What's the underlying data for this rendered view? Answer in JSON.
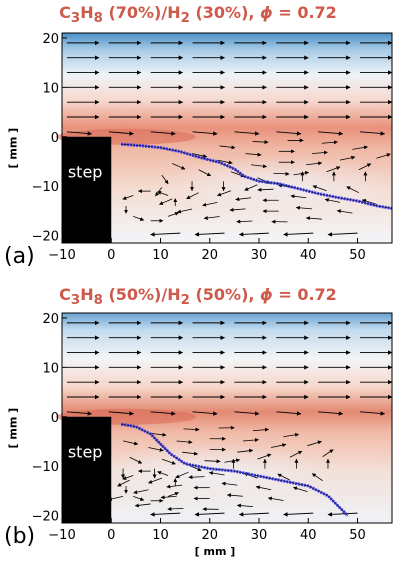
{
  "panels": [
    {
      "id": "a",
      "label": "(a)",
      "title": {
        "fuel1": "C",
        "sub1": "3",
        "fuel1b": "H",
        "sub2": "8",
        "pct1": " (70%)/H",
        "sub3": "2",
        "pct2": " (30%), ",
        "phi_symbol": "ϕ",
        "phi_value": " = 0.72"
      },
      "step_label": "step",
      "y_axis_label": "[ mm ]",
      "y_ticks": [
        "20",
        "10",
        "0",
        "−10",
        "−20"
      ],
      "x_ticks": [
        "−10",
        "0",
        "10",
        "20",
        "30",
        "40",
        "50"
      ],
      "flame_front": [
        [
          2,
          -1.5
        ],
        [
          6,
          -1.8
        ],
        [
          10,
          -2.2
        ],
        [
          14,
          -3
        ],
        [
          18,
          -4.2
        ],
        [
          22,
          -5.2
        ],
        [
          25,
          -6.5
        ],
        [
          27,
          -8
        ],
        [
          30,
          -9
        ],
        [
          34,
          -9.5
        ],
        [
          38,
          -10.5
        ],
        [
          42,
          -11.5
        ],
        [
          46,
          -12.3
        ],
        [
          50,
          -13
        ],
        [
          54,
          -14
        ],
        [
          57,
          -14.5
        ]
      ],
      "vortex_center": [
        34,
        -9
      ]
    },
    {
      "id": "b",
      "label": "(b)",
      "title": {
        "fuel1": "C",
        "sub1": "3",
        "fuel1b": "H",
        "sub2": "8",
        "pct1": " (50%)/H",
        "sub3": "2",
        "pct2": " (50%), ",
        "phi_symbol": "ϕ",
        "phi_value": " = 0.72"
      },
      "step_label": "step",
      "y_axis_label": "[ mm ]",
      "y_ticks": [
        "20",
        "10",
        "0",
        "−10",
        "−20"
      ],
      "x_ticks": [
        "−10",
        "0",
        "10",
        "20",
        "30",
        "40",
        "50"
      ],
      "flame_front": [
        [
          2,
          -1.5
        ],
        [
          5,
          -2
        ],
        [
          8,
          -3.5
        ],
        [
          10,
          -5.5
        ],
        [
          12,
          -7.5
        ],
        [
          15,
          -9.5
        ],
        [
          20,
          -10.5
        ],
        [
          25,
          -11
        ],
        [
          30,
          -12
        ],
        [
          35,
          -13
        ],
        [
          40,
          -14
        ],
        [
          44,
          -16
        ],
        [
          46,
          -18
        ],
        [
          48,
          -20
        ]
      ],
      "vortex_center": [
        20,
        -10.5
      ]
    }
  ],
  "x_axis_label": "[ mm ]",
  "axis": {
    "xmin": -10,
    "xmax": 57,
    "ymin": -21.5,
    "ymax": 21
  },
  "colors": {
    "title": "#cd5a4a",
    "flame": "#3b3bf0",
    "hot": "#e27b66",
    "cold": "#4a90c8"
  }
}
